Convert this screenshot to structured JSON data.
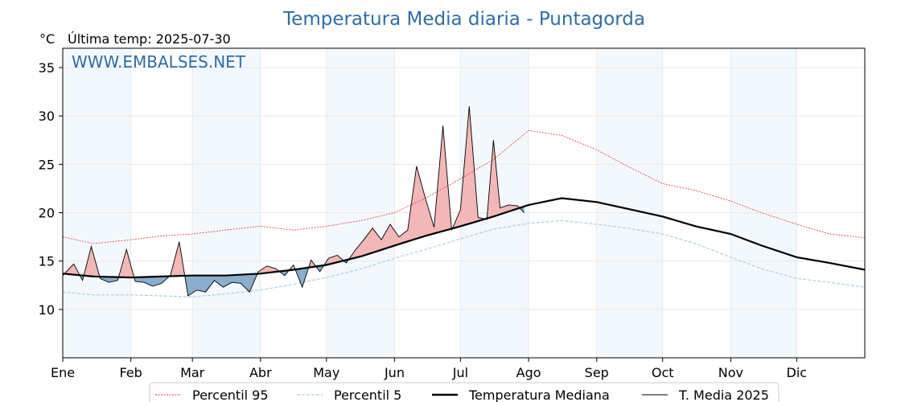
{
  "chart_data": {
    "type": "line",
    "title": "Temperatura Media diaria - Puntagorda",
    "unit": "°C",
    "last_update": "Última temp: 2025-07-30",
    "watermark": "WWW.EMBALSES.NET",
    "ylim": [
      5,
      37
    ],
    "yticks": [
      10,
      15,
      20,
      25,
      30,
      35
    ],
    "xlim": [
      1,
      366
    ],
    "months": [
      "Ene",
      "Feb",
      "Mar",
      "Abr",
      "May",
      "Jun",
      "Jul",
      "Ago",
      "Sep",
      "Oct",
      "Nov",
      "Dic"
    ],
    "month_start_day": [
      1,
      32,
      60,
      91,
      121,
      152,
      182,
      213,
      244,
      274,
      305,
      335
    ],
    "shaded_months": [
      0,
      2,
      4,
      6,
      8,
      10
    ],
    "grid": true,
    "legend_position": "bottom",
    "legend": [
      "Percentil 95",
      "Percentil 5",
      "Temperatura Mediana",
      "T. Media 2025"
    ],
    "colors": {
      "p95": "#e8302a",
      "p5": "#a8d0e0",
      "median": "#000000",
      "actual": "#000000",
      "above": "#f2b8b8",
      "below": "#8aaecc",
      "shade": "#f3f8fc",
      "title": "#2e6da4"
    },
    "series": [
      {
        "name": "Percentil 95",
        "x": [
          1,
          15,
          32,
          46,
          60,
          75,
          91,
          106,
          121,
          137,
          152,
          166,
          182,
          197,
          213,
          228,
          244,
          258,
          274,
          289,
          305,
          319,
          335,
          350,
          366
        ],
        "values": [
          17.5,
          16.8,
          17.2,
          17.6,
          17.8,
          18.2,
          18.6,
          18.2,
          18.6,
          19.2,
          20.0,
          21.5,
          23.5,
          25.5,
          28.5,
          28.0,
          26.5,
          24.8,
          23.0,
          22.3,
          21.2,
          20.0,
          18.8,
          17.8,
          17.4
        ]
      },
      {
        "name": "Percentil 5",
        "x": [
          1,
          15,
          32,
          46,
          60,
          75,
          91,
          106,
          121,
          137,
          152,
          166,
          182,
          197,
          213,
          228,
          244,
          258,
          274,
          289,
          305,
          319,
          335,
          350,
          366
        ],
        "values": [
          11.8,
          11.5,
          11.5,
          11.4,
          11.3,
          11.6,
          12.0,
          12.6,
          13.3,
          14.2,
          15.3,
          16.2,
          17.3,
          18.3,
          18.9,
          19.2,
          18.8,
          18.4,
          17.8,
          16.8,
          15.4,
          14.2,
          13.2,
          12.8,
          12.3
        ]
      },
      {
        "name": "Temperatura Mediana",
        "x": [
          1,
          15,
          32,
          46,
          60,
          75,
          91,
          106,
          121,
          137,
          152,
          166,
          182,
          197,
          213,
          228,
          244,
          258,
          274,
          289,
          305,
          319,
          335,
          350,
          366
        ],
        "values": [
          13.7,
          13.4,
          13.3,
          13.4,
          13.5,
          13.5,
          13.7,
          14.1,
          14.6,
          15.5,
          16.6,
          17.6,
          18.6,
          19.6,
          20.8,
          21.5,
          21.1,
          20.4,
          19.6,
          18.6,
          17.8,
          16.6,
          15.4,
          14.8,
          14.1
        ]
      },
      {
        "name": "T. Media 2025",
        "x": [
          1,
          6,
          10,
          14,
          18,
          22,
          26,
          30,
          34,
          38,
          42,
          46,
          50,
          54,
          58,
          62,
          66,
          70,
          74,
          78,
          82,
          86,
          90,
          94,
          98,
          102,
          106,
          110,
          114,
          118,
          122,
          126,
          130,
          134,
          138,
          142,
          146,
          150,
          154,
          158,
          162,
          166,
          170,
          174,
          178,
          182,
          186,
          190,
          194,
          197,
          200,
          204,
          208,
          211
        ],
        "values": [
          13.5,
          14.7,
          13.0,
          16.5,
          13.2,
          12.8,
          13.0,
          16.2,
          12.9,
          12.8,
          12.4,
          12.7,
          13.5,
          17.0,
          11.4,
          12.0,
          11.8,
          13.0,
          12.3,
          12.8,
          12.7,
          11.8,
          13.9,
          14.5,
          14.2,
          13.5,
          14.6,
          12.3,
          15.1,
          13.9,
          15.3,
          15.6,
          14.8,
          16.1,
          17.2,
          18.4,
          17.2,
          18.8,
          17.5,
          18.2,
          24.8,
          21.5,
          18.5,
          29.0,
          18.2,
          20.3,
          31.0,
          19.5,
          19.3,
          27.5,
          20.5,
          20.8,
          20.7,
          20.0
        ]
      }
    ]
  }
}
